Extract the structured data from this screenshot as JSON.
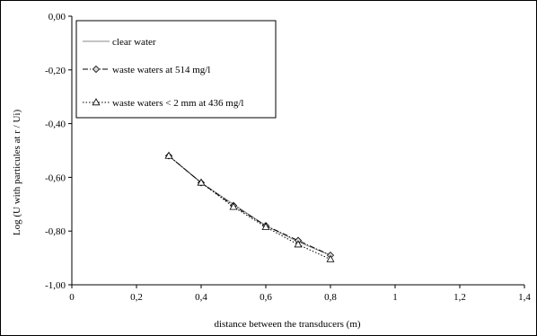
{
  "chart_data": {
    "type": "line",
    "xlabel": "distance between the transducers (m)",
    "ylabel": "Log (U with particules at r / Ui)",
    "xlim": [
      0,
      1.4
    ],
    "ylim": [
      -1.0,
      0.0
    ],
    "x_ticks": [
      0,
      0.2,
      0.4,
      0.6,
      0.8,
      1.0,
      1.2,
      1.4
    ],
    "x_tick_labels": [
      "0",
      "0,2",
      "0,4",
      "0,6",
      "0,8",
      "1",
      "1,2",
      "1,4"
    ],
    "y_ticks": [
      0,
      -0.2,
      -0.4,
      -0.6,
      -0.8,
      -1.0
    ],
    "y_tick_labels": [
      "0,00",
      "-0,20",
      "-0,40",
      "-0,60",
      "-0,80",
      "-1,00"
    ],
    "grid": false,
    "legend_position": "top-left",
    "x": [
      0.3,
      0.4,
      0.5,
      0.6,
      0.7,
      0.8
    ],
    "series": [
      {
        "name": "clear water",
        "values": [
          -0.52,
          -0.62,
          -0.7,
          -0.78,
          -0.84,
          -0.89
        ],
        "color": "#888888",
        "line_style": "solid",
        "marker": "none"
      },
      {
        "name": "waste waters at 514 mg/l",
        "values": [
          -0.52,
          -0.62,
          -0.705,
          -0.78,
          -0.835,
          -0.89
        ],
        "color": "#000000",
        "line_style": "dash-dot",
        "marker": "diamond"
      },
      {
        "name": "waste waters < 2 mm at 436 mg/l",
        "values": [
          -0.52,
          -0.62,
          -0.71,
          -0.785,
          -0.85,
          -0.905
        ],
        "color": "#000000",
        "line_style": "dotted",
        "marker": "triangle"
      }
    ]
  }
}
